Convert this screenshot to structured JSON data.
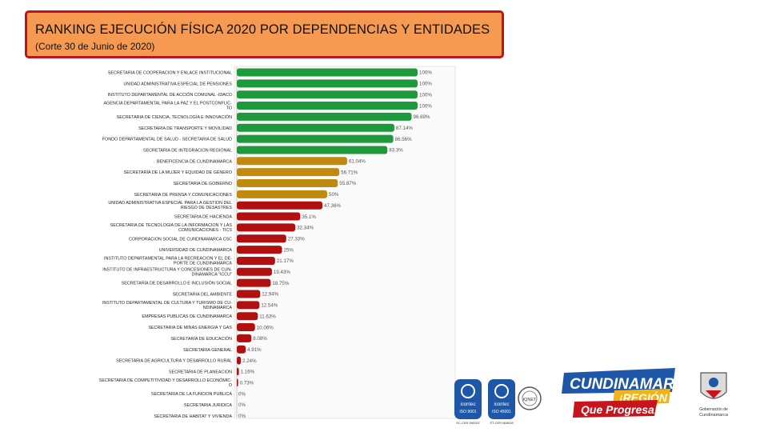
{
  "header": {
    "title": "RANKING EJECUCIÓN FÍSICA 2020 POR DEPENDENCIAS Y ENTIDADES",
    "subtitle": "(Corte 30 de Junio de 2020)"
  },
  "chart_data": {
    "type": "bar",
    "orientation": "horizontal",
    "title": "RANKING EJECUCIÓN FÍSICA 2020 POR DEPENDENCIAS Y ENTIDADES",
    "xlabel": "",
    "ylabel": "",
    "xlim": [
      0,
      100
    ],
    "colors": {
      "green": "#1e9a3c",
      "gold": "#c08a10",
      "red": "#b01010"
    },
    "categories": [
      [
        "SECRETARIA DE COOPERACION Y ENLACE INSTITUCIONAL"
      ],
      [
        "UNIDAD ADMINISTRATIVA ESPECIAL DE PENSIONES"
      ],
      [
        "INSTITUTO DEPARTAMENTAL DE ACCIÓN COMUNAL -IDACO"
      ],
      [
        "AGENCIA DEPARTAMENTAL PARA LA PAZ Y EL POSTCONFLIC-",
        "TO"
      ],
      [
        "SECRETARIA DE CIENCIA, TECNOLOGÍA E INNOVACIÓN"
      ],
      [
        "SECRETARÍA DE TRANSPORTE Y MOVILIDAD"
      ],
      [
        "FONDO DEPARTAMENTAL DE SALUD - SECRETARIA DE SALUD"
      ],
      [
        "SECRETARIA DE INTEGRACION REGIONAL"
      ],
      [
        "BENEFICENCIA DE CUNDINAMARCA"
      ],
      [
        "SECRETARÍA DE LA MUJER Y EQUIDAD DE GÉNERO"
      ],
      [
        "SECRETARIA DE GOBIERNO"
      ],
      [
        "SECRETARIA DE PRENSA Y COMUNICACIONES"
      ],
      [
        "UNIDAD ADMINISTRATIVA ESPECIAL PARA LA GESTION DEL",
        "RIESGO DE DESASTRES"
      ],
      [
        "SECRETARIA DE HACIENDA"
      ],
      [
        "SECRETARIA DE TECNOLOGIA DE LA INFORMACION Y LAS",
        "COMUNICACIONES - TICS"
      ],
      [
        "CORPORACION SOCIAL DE CUNDINAMARCA CSC"
      ],
      [
        "UNIVERSIDAD DE CUNDINAMARCA"
      ],
      [
        "INSTITUTO DEPARTAMENTAL PARA LA RECREACION Y EL DE-",
        "PORTE DE CUNDINAMARCA"
      ],
      [
        "INSTITUTO DE INFRAESTRUCTURA Y CONCESIONES DE CUN-",
        "DINAMARCA \"ICCU\""
      ],
      [
        "SECRETARÍA DE DESARROLLO E INCLUSIÓN SOCIAL"
      ],
      [
        "SECRETARIA DEL AMBIENTE"
      ],
      [
        "INSTITUTO DEPARTAMENTAL DE CULTURA Y TURISMO DE CU-",
        "NDINAMARCA"
      ],
      [
        "EMPRESAS PUBLICAS DE CUNDINAMARCA"
      ],
      [
        "SECRETARIA DE MINAS ENERGIA Y GAS"
      ],
      [
        "SECRETARÍA DE EDUCACIÓN"
      ],
      [
        "SECRETARIA GENERAL"
      ],
      [
        "SECRETARIA DE AGRICULTURA Y DESARROLLO RURAL"
      ],
      [
        "SECRETARIA DE PLANEACION"
      ],
      [
        "SECRETARIA DE COMPETITIVIDAD Y DESARROLLO ECONÓMIC-",
        "O"
      ],
      [
        "SECRETARIA DE LA FUNCION PUBLICA"
      ],
      [
        "SECRETARIA JURIDICA"
      ],
      [
        "SECRETARIA DE HABITAT Y VIVIENDA"
      ]
    ],
    "values": [
      100,
      100,
      100,
      100,
      96.69,
      87.14,
      86.56,
      83.3,
      61.04,
      56.71,
      55.87,
      50,
      47.36,
      35.1,
      32.34,
      27.33,
      25,
      21.17,
      19.43,
      18.75,
      12.94,
      12.54,
      11.63,
      10.06,
      8.08,
      4.91,
      2.24,
      1.16,
      0.73,
      0,
      0,
      0
    ],
    "value_labels": [
      "100%",
      "100%",
      "100%",
      "100%",
      "96.69%",
      "87.14%",
      "86.56%",
      "83.3%",
      "61.04%",
      "56.71%",
      "55.87%",
      "50%",
      "47.36%",
      "35.1%",
      "32.34%",
      "27.33%",
      "25%",
      "21.17%",
      "19.43%",
      "18.75%",
      "12.94%",
      "12.54%",
      "11.63%",
      "10.06%",
      "8.08%",
      "4.91%",
      "2.24%",
      "1.16%",
      "0.73%",
      "0%",
      "0%",
      "0%"
    ],
    "bar_color_groups": [
      "green",
      "green",
      "green",
      "green",
      "green",
      "green",
      "green",
      "green",
      "gold",
      "gold",
      "gold",
      "gold",
      "red",
      "red",
      "red",
      "red",
      "red",
      "red",
      "red",
      "red",
      "red",
      "red",
      "red",
      "red",
      "red",
      "red",
      "red",
      "red",
      "red",
      "red",
      "red",
      "red"
    ]
  },
  "logos": {
    "icontec_1": {
      "name": "icontec",
      "standard": "ISO 9001",
      "code": "SC-CER 565357"
    },
    "icontec_2": {
      "name": "icontec",
      "standard": "ISO 45001",
      "code": "ST-CER 668028"
    },
    "iqnet": "IQNET",
    "brand": {
      "line1": "CUNDINAMARCA",
      "line2": "¡REGIÓN",
      "line3": "Que Progresa!"
    },
    "crest_caption": {
      "line1": "Gobernación de",
      "line2": "Cundinamarca"
    }
  }
}
